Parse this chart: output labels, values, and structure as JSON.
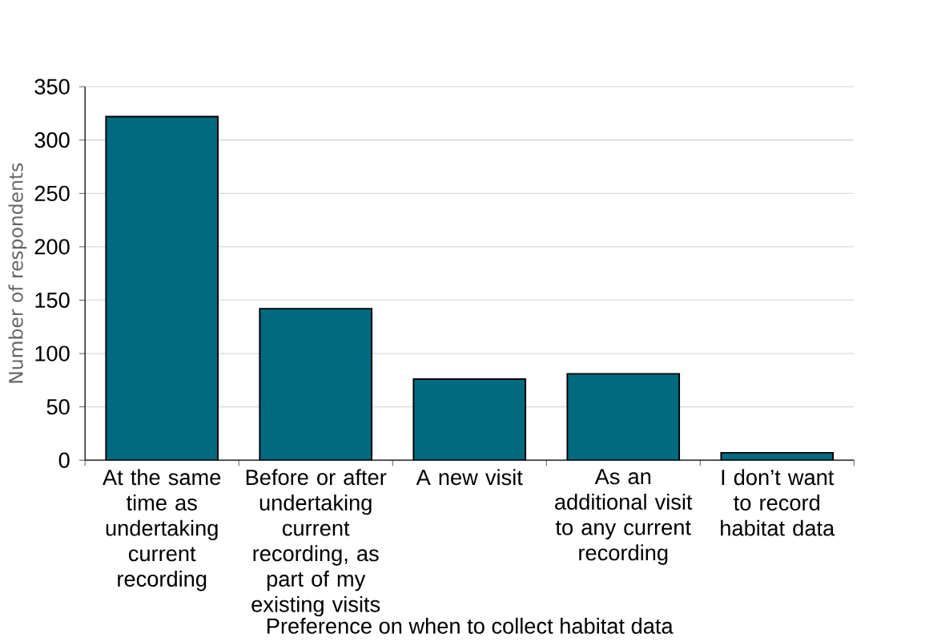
{
  "chart_data": {
    "type": "bar",
    "xlabel": "Preference on when to collect habitat data",
    "ylabel": "Number of respondents",
    "categories": [
      "At the same time as undertaking current recording",
      "Before or after undertaking current recording, as part of my existing visits",
      "A new visit",
      "As an additional visit to any current recording",
      "I don’t want to record habitat data"
    ],
    "values": [
      322,
      142,
      76,
      81,
      7
    ],
    "color": "#006a80",
    "ylim": [
      0,
      350
    ],
    "yticks": [
      0,
      50,
      100,
      150,
      200,
      250,
      300,
      350
    ],
    "grid": "y"
  }
}
